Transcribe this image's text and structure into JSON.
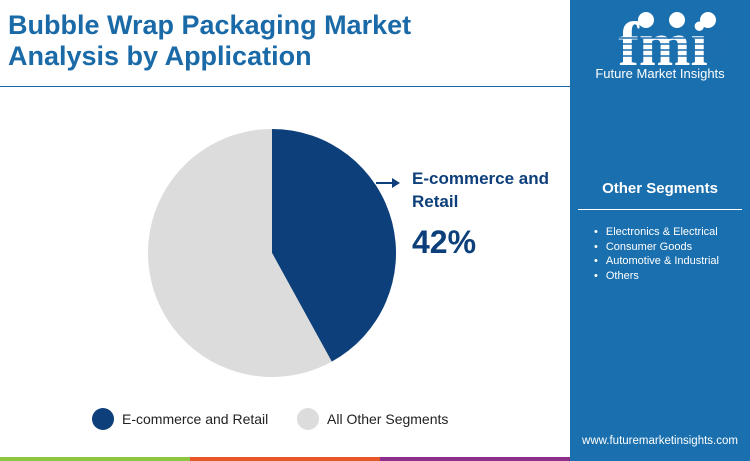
{
  "title": "Bubble Wrap Packaging Market Analysis by Application",
  "brand": {
    "logo_letters": "fmi",
    "name": "Future Market Insights",
    "url": "www.futuremarketinsights.com"
  },
  "sidebar": {
    "heading": "Other Segments",
    "items": [
      "Electronics & Electrical",
      "Consumer Goods",
      "Automotive & Industrial",
      "Others"
    ]
  },
  "chart_data": {
    "type": "pie",
    "title": "Bubble Wrap Packaging Market Analysis by Application",
    "slices": [
      {
        "name": "E-commerce and Retail",
        "value": 42,
        "color": "#0d3f7a"
      },
      {
        "name": "All Other Segments",
        "value": 58,
        "color": "#dcdcdc"
      }
    ],
    "callout": {
      "label": "E-commerce and Retail",
      "value_label": "42%"
    },
    "legend": "bottom"
  },
  "colors": {
    "accent": "#1a6fae",
    "bottom_bar": [
      "#8dc63f",
      "#e8572a",
      "#8b2f8b",
      "#1a6fae"
    ]
  }
}
